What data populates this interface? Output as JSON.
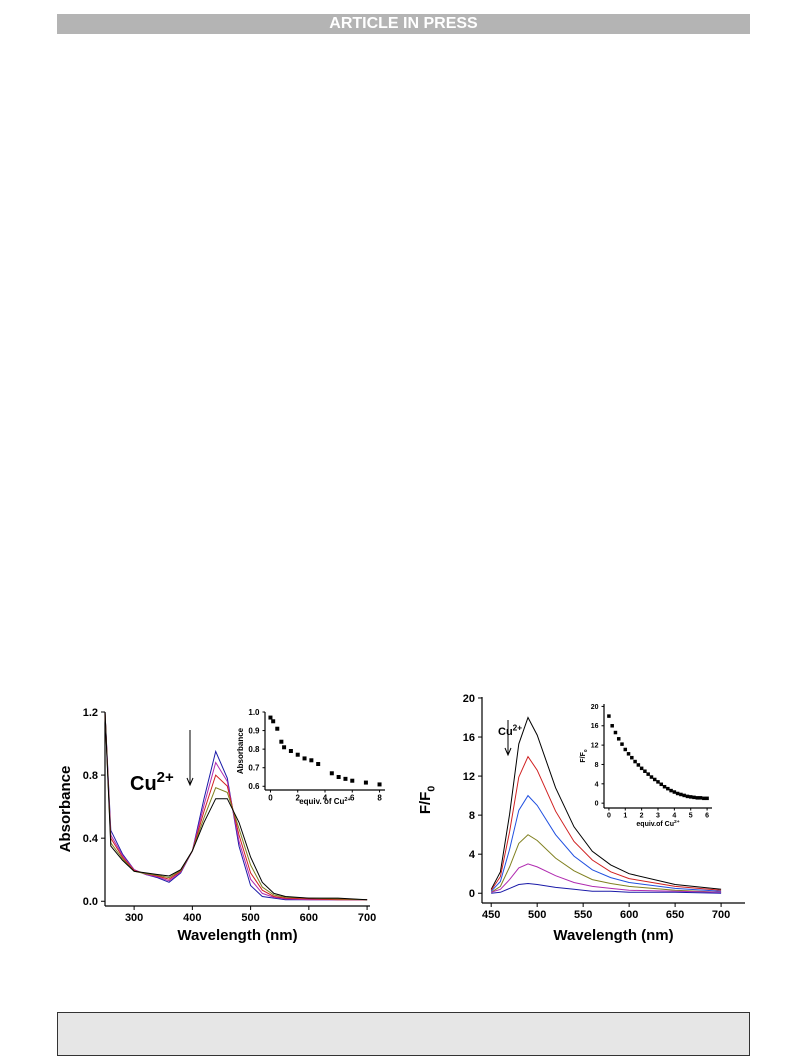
{
  "header": "ARTICLE IN PRESS",
  "chart_data": [
    {
      "type": "line",
      "annotation": "Cu",
      "annotation_sup": "2+",
      "xlabel": "Wavelength (nm)",
      "ylabel": "Absorbance",
      "xlim": [
        250,
        705
      ],
      "ylim": [
        -0.03,
        1.2
      ],
      "xticks": [
        300,
        400,
        500,
        600,
        700
      ],
      "yticks": [
        {
          "value": 0,
          "label": "0.0"
        },
        0.4,
        0.8,
        1.2
      ],
      "x": [
        250,
        260,
        280,
        300,
        320,
        340,
        360,
        380,
        400,
        420,
        440,
        460,
        480,
        500,
        520,
        540,
        560,
        600,
        650,
        700
      ],
      "series": [
        {
          "color": "#1a1aa8",
          "values": [
            1.2,
            0.45,
            0.3,
            0.2,
            0.17,
            0.15,
            0.12,
            0.18,
            0.32,
            0.65,
            0.95,
            0.78,
            0.35,
            0.1,
            0.03,
            0.02,
            0.01,
            0.01,
            0.01,
            0.01
          ]
        },
        {
          "color": "#b02ab0",
          "values": [
            1.2,
            0.42,
            0.29,
            0.2,
            0.17,
            0.155,
            0.13,
            0.185,
            0.32,
            0.61,
            0.88,
            0.76,
            0.38,
            0.14,
            0.05,
            0.025,
            0.015,
            0.01,
            0.01,
            0.01
          ]
        },
        {
          "color": "#d02020",
          "values": [
            1.2,
            0.4,
            0.28,
            0.195,
            0.175,
            0.16,
            0.14,
            0.19,
            0.32,
            0.57,
            0.8,
            0.73,
            0.42,
            0.18,
            0.07,
            0.03,
            0.02,
            0.015,
            0.01,
            0.01
          ]
        },
        {
          "color": "#808020",
          "values": [
            1.2,
            0.37,
            0.27,
            0.19,
            0.175,
            0.165,
            0.15,
            0.195,
            0.32,
            0.53,
            0.72,
            0.69,
            0.46,
            0.23,
            0.09,
            0.04,
            0.025,
            0.02,
            0.015,
            0.01
          ]
        },
        {
          "color": "#000000",
          "values": [
            1.2,
            0.35,
            0.26,
            0.19,
            0.18,
            0.17,
            0.16,
            0.2,
            0.32,
            0.5,
            0.65,
            0.65,
            0.5,
            0.28,
            0.12,
            0.05,
            0.03,
            0.02,
            0.02,
            0.01
          ]
        }
      ]
    },
    {
      "type": "scatter",
      "xlabel": "equiv. of Cu",
      "xlabel_sup": "2+",
      "ylabel": "Absorbance",
      "xlim": [
        -0.4,
        8.4
      ],
      "ylim": [
        0.58,
        1.0
      ],
      "xticks": [
        0,
        2,
        4,
        6,
        8
      ],
      "yticks": [
        0.6,
        0.7,
        0.8,
        0.9,
        {
          "value": 1,
          "label": "1.0"
        }
      ],
      "color": "#000000",
      "x": [
        0,
        0.2,
        0.5,
        0.8,
        1,
        1.5,
        2,
        2.5,
        3,
        3.5,
        4.5,
        5,
        5.5,
        6,
        7,
        8
      ],
      "values": [
        0.97,
        0.95,
        0.91,
        0.84,
        0.81,
        0.79,
        0.77,
        0.75,
        0.74,
        0.72,
        0.67,
        0.65,
        0.64,
        0.63,
        0.62,
        0.61
      ]
    },
    {
      "type": "line",
      "annotation": "Cu",
      "annotation_sup": "2+",
      "xlabel": "Wavelength (nm)",
      "ylabel": "F/F",
      "ylabel_sub": "0",
      "xlim": [
        440,
        726
      ],
      "ylim": [
        -1,
        20.1
      ],
      "xticks": [
        450,
        500,
        550,
        600,
        650,
        700
      ],
      "yticks": [
        0,
        4,
        8,
        12,
        16,
        20
      ],
      "x": [
        450,
        460,
        470,
        480,
        490,
        500,
        520,
        540,
        560,
        580,
        600,
        650,
        700
      ],
      "series": [
        {
          "color": "#000000",
          "values": [
            0.4,
            2.2,
            8.1,
            15.3,
            18,
            16.2,
            10.8,
            6.8,
            4.3,
            2.9,
            2.0,
            0.9,
            0.4
          ]
        },
        {
          "color": "#d02020",
          "values": [
            0.3,
            1.7,
            6.3,
            11.9,
            14,
            12.6,
            8.4,
            5.3,
            3.4,
            2.2,
            1.5,
            0.7,
            0.3
          ]
        },
        {
          "color": "#2050e0",
          "values": [
            0.2,
            1.2,
            4.5,
            8.5,
            10,
            9,
            6,
            3.8,
            2.4,
            1.6,
            1.1,
            0.5,
            0.2
          ]
        },
        {
          "color": "#808020",
          "values": [
            0.1,
            0.7,
            2.7,
            5.1,
            6,
            5.4,
            3.6,
            2.3,
            1.4,
            1.0,
            0.7,
            0.3,
            0.1
          ]
        },
        {
          "color": "#b02ab0",
          "values": [
            0.1,
            0.4,
            1.4,
            2.6,
            3,
            2.7,
            1.8,
            1.1,
            0.7,
            0.5,
            0.3,
            0.2,
            0.1
          ]
        },
        {
          "color": "#1a1aa8",
          "values": [
            0.0,
            0.1,
            0.5,
            0.9,
            1,
            0.9,
            0.6,
            0.4,
            0.2,
            0.2,
            0.1,
            0.1,
            0.0
          ]
        }
      ]
    },
    {
      "type": "scatter",
      "xlabel": "equiv.of Cu",
      "xlabel_sup": "2+",
      "ylabel": "F/F",
      "ylabel_sub": "0",
      "xlim": [
        -0.3,
        6.3
      ],
      "ylim": [
        -1,
        20.5
      ],
      "xticks": [
        0,
        1,
        2,
        3,
        4,
        5,
        6
      ],
      "yticks": [
        0,
        4,
        8,
        12,
        16,
        20
      ],
      "color": "#000000",
      "x": [
        0,
        0.2,
        0.4,
        0.6,
        0.8,
        1.0,
        1.2,
        1.4,
        1.6,
        1.8,
        2.0,
        2.2,
        2.4,
        2.6,
        2.8,
        3.0,
        3.2,
        3.4,
        3.6,
        3.8,
        4.0,
        4.2,
        4.4,
        4.6,
        4.8,
        5.0,
        5.2,
        5.4,
        5.6,
        5.8,
        6.0
      ],
      "values": [
        18,
        16,
        14.6,
        13.3,
        12.2,
        11.1,
        10.2,
        9.4,
        8.6,
        7.9,
        7.2,
        6.6,
        6.0,
        5.4,
        4.9,
        4.4,
        3.9,
        3.4,
        3.0,
        2.6,
        2.3,
        2.0,
        1.8,
        1.6,
        1.4,
        1.3,
        1.2,
        1.1,
        1.1,
        1.0,
        1.0
      ]
    }
  ]
}
